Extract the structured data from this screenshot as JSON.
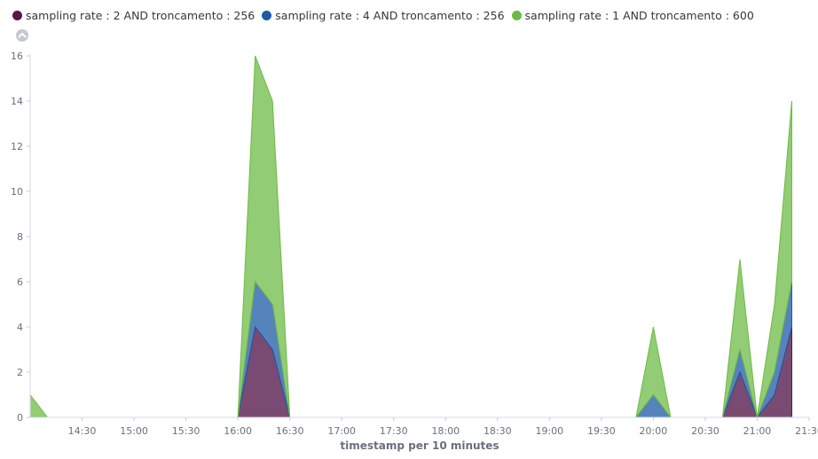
{
  "legend": {
    "items": [
      {
        "label": "sampling rate : 2 AND troncamento : 256",
        "color": "#54184a"
      },
      {
        "label": "sampling rate : 4 AND troncamento : 256",
        "color": "#1f5aa6"
      },
      {
        "label": "sampling rate : 1 AND troncamento : 600",
        "color": "#6dbb45"
      }
    ]
  },
  "controls": {
    "collapse_icon": "chevron-up-icon"
  },
  "chart_data": {
    "type": "area",
    "stacked": true,
    "xlabel": "timestamp per 10 minutes",
    "ylabel": "",
    "x": [
      "14:00",
      "14:10",
      "14:20",
      "14:30",
      "14:40",
      "14:50",
      "15:00",
      "15:10",
      "15:20",
      "15:30",
      "15:40",
      "15:50",
      "16:00",
      "16:10",
      "16:20",
      "16:30",
      "16:40",
      "16:50",
      "17:00",
      "17:10",
      "17:20",
      "17:30",
      "17:40",
      "17:50",
      "18:00",
      "18:10",
      "18:20",
      "18:30",
      "18:40",
      "18:50",
      "19:00",
      "19:10",
      "19:20",
      "19:30",
      "19:40",
      "19:50",
      "20:00",
      "20:10",
      "20:20",
      "20:30",
      "20:40",
      "20:50",
      "21:00",
      "21:10",
      "21:20"
    ],
    "x_ticks": [
      "14:30",
      "15:00",
      "15:30",
      "16:00",
      "16:30",
      "17:00",
      "17:30",
      "18:00",
      "18:30",
      "19:00",
      "19:30",
      "20:00",
      "20:30",
      "21:00",
      "21:30"
    ],
    "x_range": [
      "14:00",
      "21:30"
    ],
    "y_ticks": [
      0,
      2,
      4,
      6,
      8,
      10,
      12,
      14,
      16
    ],
    "ylim": [
      0,
      16
    ],
    "grid": false,
    "legend_position": "top-left",
    "series": [
      {
        "name": "sampling rate : 2 AND troncamento : 256",
        "color": "#54184a",
        "values": [
          0,
          0,
          0,
          0,
          0,
          0,
          0,
          0,
          0,
          0,
          0,
          0,
          0,
          4,
          3,
          0,
          0,
          0,
          0,
          0,
          0,
          0,
          0,
          0,
          0,
          0,
          0,
          0,
          0,
          0,
          0,
          0,
          0,
          0,
          0,
          0,
          0,
          0,
          0,
          0,
          0,
          2,
          0,
          1,
          4
        ]
      },
      {
        "name": "sampling rate : 4 AND troncamento : 256",
        "color": "#1f5aa6",
        "values": [
          0,
          0,
          0,
          0,
          0,
          0,
          0,
          0,
          0,
          0,
          0,
          0,
          0,
          2,
          2,
          0,
          0,
          0,
          0,
          0,
          0,
          0,
          0,
          0,
          0,
          0,
          0,
          0,
          0,
          0,
          0,
          0,
          0,
          0,
          0,
          0,
          1,
          0,
          0,
          0,
          0,
          1,
          0,
          1,
          2
        ]
      },
      {
        "name": "sampling rate : 1 AND troncamento : 600",
        "color": "#6dbb45",
        "values": [
          1,
          0,
          0,
          0,
          0,
          0,
          0,
          0,
          0,
          0,
          0,
          0,
          0,
          10,
          9,
          0,
          0,
          0,
          0,
          0,
          0,
          0,
          0,
          0,
          0,
          0,
          0,
          0,
          0,
          0,
          0,
          0,
          0,
          0,
          0,
          0,
          3,
          0,
          0,
          0,
          0,
          4,
          0,
          3,
          8
        ]
      }
    ]
  }
}
